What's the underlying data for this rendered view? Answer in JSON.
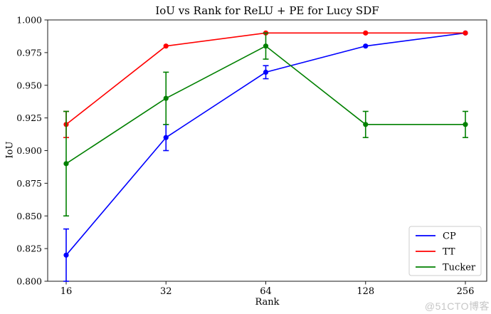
{
  "watermark": "@51CTO博客",
  "chart_data": {
    "type": "line",
    "title": "IoU vs Rank for ReLU + PE for Lucy SDF",
    "xlabel": "Rank",
    "ylabel": "IoU",
    "categories": [
      "16",
      "32",
      "64",
      "128",
      "256"
    ],
    "ylim": [
      0.8,
      1.0
    ],
    "ytick_step": 0.025,
    "yticks": [
      "0.800",
      "0.825",
      "0.850",
      "0.875",
      "0.900",
      "0.925",
      "0.950",
      "0.975",
      "1.000"
    ],
    "grid": false,
    "marker": "circle",
    "error_bars": true,
    "legend_position": "lower right",
    "series": [
      {
        "name": "CP",
        "color": "#0000ff",
        "values": [
          0.82,
          0.91,
          0.96,
          0.98,
          0.99
        ],
        "yerr": [
          0.02,
          0.01,
          0.005,
          0.0,
          0.0
        ]
      },
      {
        "name": "TT",
        "color": "#ff0000",
        "values": [
          0.92,
          0.98,
          0.99,
          0.99,
          0.99
        ],
        "yerr": [
          0.01,
          0.0,
          0.0,
          0.0,
          0.0
        ]
      },
      {
        "name": "Tucker",
        "color": "#008000",
        "values": [
          0.89,
          0.94,
          0.98,
          0.92,
          0.92
        ],
        "yerr": [
          0.04,
          0.02,
          0.01,
          0.01,
          0.01
        ]
      }
    ]
  }
}
